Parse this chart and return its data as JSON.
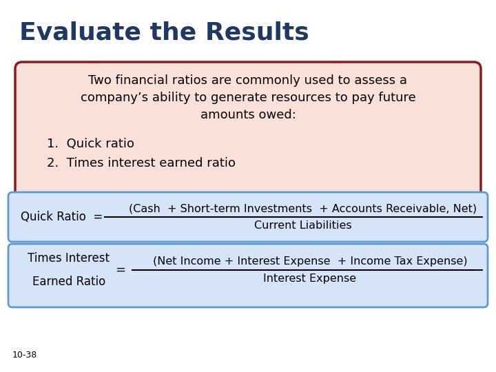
{
  "title": "Evaluate the Results",
  "title_color": "#1F3864",
  "title_fontsize": 26,
  "background_color": "#FFFFFF",
  "outer_border_color": "#8B1A1A",
  "box1_text_center": "Two financial ratios are commonly used to assess a\ncompany’s ability to generate resources to pay future\namounts owed:",
  "box1_text_list": "1.  Quick ratio\n2.  Times interest earned ratio",
  "box1_bg": "#F9E0D9",
  "box1_border": "#8B1A1A",
  "box2_label": "Quick Ratio  = ",
  "box2_numerator": "(Cash  + Short-term Investments  + Accounts Receivable, Net)",
  "box2_denominator": "Current Liabilities",
  "box2_bg": "#D6E4F7",
  "box2_border": "#5B9BD5",
  "box3_label_line1": "Times Interest",
  "box3_label_line2": "Earned Ratio",
  "box3_equals": "=",
  "box3_numerator": "(Net Income + Interest Expense  + Income Tax Expense)",
  "box3_denominator": "Interest Expense",
  "box3_bg": "#D6E4F7",
  "box3_border": "#5B9BD5",
  "footnote": "10-38",
  "footnote_fontsize": 9,
  "text_color": "#000000",
  "label_fontsize": 12,
  "formula_fontsize": 11.5
}
